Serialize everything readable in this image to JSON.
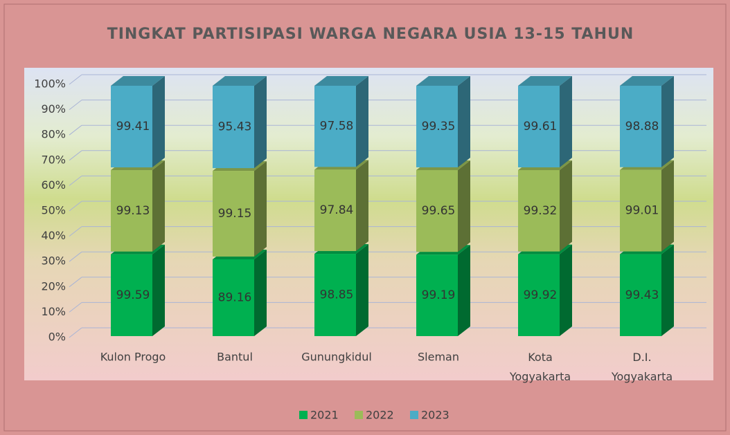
{
  "chart_data": {
    "type": "bar",
    "stacking": "percent",
    "three_d": true,
    "title": "TINGKAT PARTISIPASI WARGA NEGARA USIA 13-15 TAHUN",
    "categories": [
      "Kulon Progo",
      "Bantul",
      "Gunungkidul",
      "Sleman",
      "Kota Yogyakarta",
      "D.I. Yogyakarta"
    ],
    "series": [
      {
        "name": "2021",
        "color": "#00b050",
        "values": [
          99.59,
          89.16,
          98.85,
          99.19,
          99.92,
          99.43
        ]
      },
      {
        "name": "2022",
        "color": "#9bbb59",
        "values": [
          99.13,
          99.15,
          97.84,
          99.65,
          99.32,
          99.01
        ]
      },
      {
        "name": "2023",
        "color": "#4bacc6",
        "values": [
          99.41,
          95.43,
          97.58,
          99.35,
          99.61,
          98.88
        ]
      }
    ],
    "ylim": [
      0,
      100
    ],
    "yticks": [
      {
        "value": 0,
        "label": "0%"
      },
      {
        "value": 10,
        "label": "10%"
      },
      {
        "value": 20,
        "label": "20%"
      },
      {
        "value": 30,
        "label": "30%"
      },
      {
        "value": 40,
        "label": "40%"
      },
      {
        "value": 50,
        "label": "50%"
      },
      {
        "value": 60,
        "label": "60%"
      },
      {
        "value": 70,
        "label": "70%"
      },
      {
        "value": 80,
        "label": "80%"
      },
      {
        "value": 90,
        "label": "90%"
      },
      {
        "value": 100,
        "label": "100%"
      }
    ],
    "grid": true,
    "legend": "bottom"
  }
}
